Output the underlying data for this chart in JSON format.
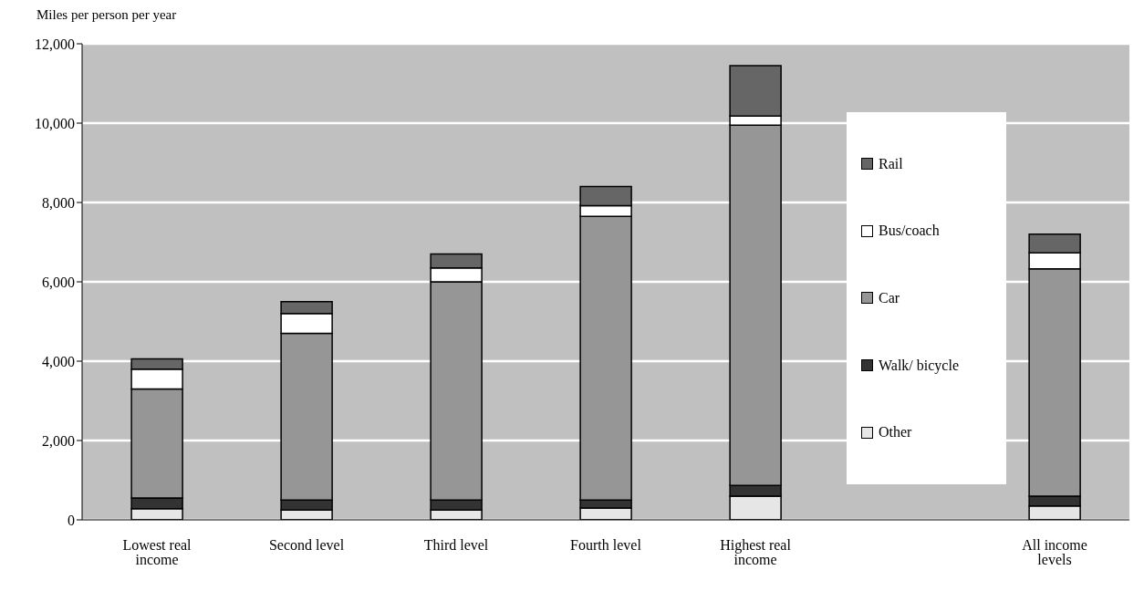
{
  "chart_data": {
    "type": "bar",
    "stacked": true,
    "ylabel": "Miles per person per year",
    "categories": [
      "Lowest real income",
      "Second level",
      "Third level",
      "Fourth level",
      "Highest real income",
      null,
      "All income levels"
    ],
    "series": [
      {
        "name": "Other",
        "color": "#e6e6e6",
        "values": [
          280,
          250,
          250,
          300,
          600,
          null,
          350
        ]
      },
      {
        "name": "Walk/ bicycle",
        "color": "#333333",
        "values": [
          270,
          250,
          250,
          200,
          270,
          null,
          250
        ]
      },
      {
        "name": "Car",
        "color": "#969696",
        "values": [
          2750,
          4200,
          5500,
          7150,
          9080,
          null,
          5730
        ]
      },
      {
        "name": "Bus/coach",
        "color": "#ffffff",
        "values": [
          500,
          500,
          350,
          270,
          230,
          null,
          400
        ]
      },
      {
        "name": "Rail",
        "color": "#666666",
        "values": [
          260,
          300,
          350,
          480,
          1270,
          null,
          470
        ]
      }
    ],
    "ylim": [
      0,
      12000
    ],
    "yticks": [
      {
        "value": 0,
        "label": "0"
      },
      {
        "value": 2000,
        "label": "2,000"
      },
      {
        "value": 4000,
        "label": "4,000"
      },
      {
        "value": 6000,
        "label": "6,000"
      },
      {
        "value": 8000,
        "label": "8,000"
      },
      {
        "value": 10000,
        "label": "10,000"
      },
      {
        "value": 12000,
        "label": "12,000"
      }
    ],
    "grid": "y",
    "legend": "right"
  }
}
